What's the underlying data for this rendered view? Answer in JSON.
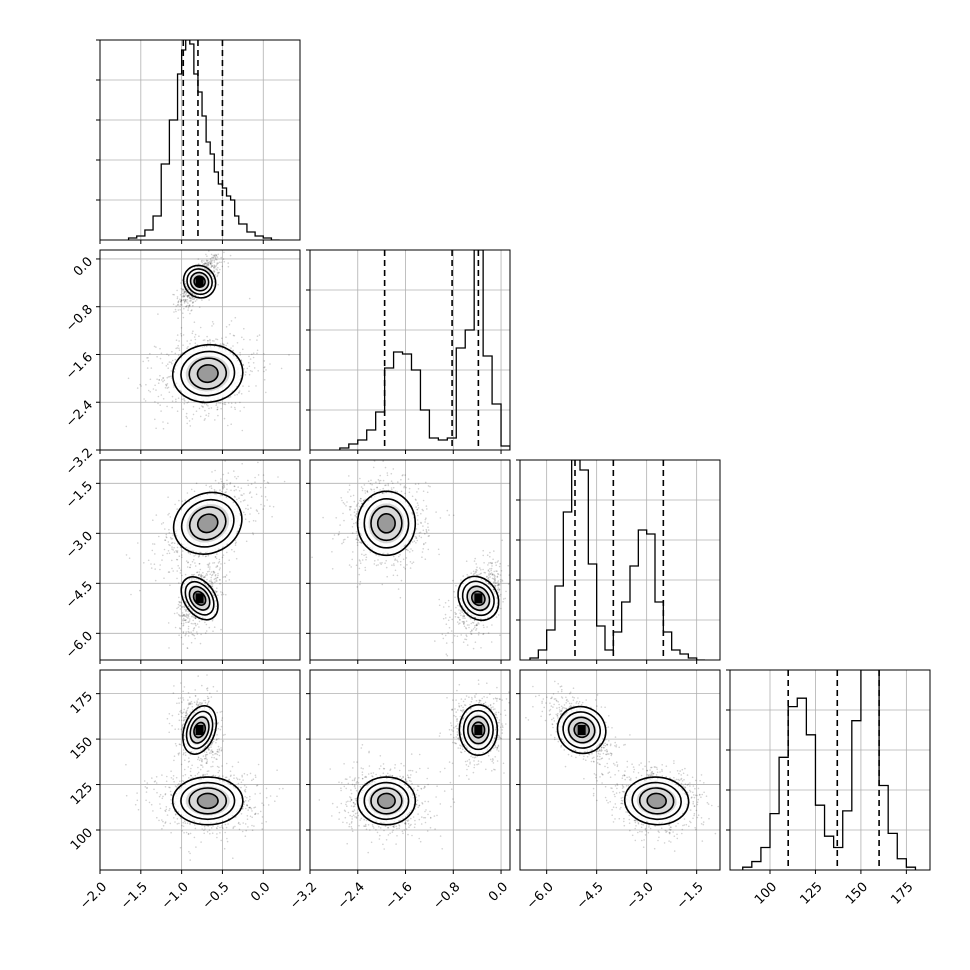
{
  "chart_data": {
    "type": "corner-plot",
    "grid": true,
    "variables": [
      {
        "ticks": [
          -2.0,
          -1.5,
          -1.0,
          -0.5,
          0.0
        ],
        "tick_labels": [
          "−2.0",
          "−1.5",
          "−1.0",
          "−0.5",
          "0.0"
        ],
        "xlim": [
          -2.0,
          0.45
        ],
        "quantiles": [
          -0.98,
          -0.8,
          -0.5
        ],
        "hist": {
          "bin_edges": [
            -1.65,
            -1.55,
            -1.45,
            -1.35,
            -1.25,
            -1.15,
            -1.05,
            -1.0,
            -0.95,
            -0.9,
            -0.85,
            -0.8,
            -0.75,
            -0.7,
            -0.65,
            -0.6,
            -0.55,
            -0.5,
            -0.45,
            -0.4,
            -0.35,
            -0.3,
            -0.2,
            -0.1,
            0.0,
            0.1,
            0.2
          ],
          "counts": [
            0.01,
            0.02,
            0.05,
            0.12,
            0.38,
            0.6,
            0.83,
            0.95,
            1.0,
            0.98,
            0.83,
            0.74,
            0.62,
            0.49,
            0.43,
            0.34,
            0.28,
            0.26,
            0.22,
            0.2,
            0.12,
            0.08,
            0.04,
            0.02,
            0.01,
            0.0
          ]
        }
      },
      {
        "ticks": [
          -3.2,
          -2.4,
          -1.6,
          -0.8,
          0.0
        ],
        "tick_labels": [
          "−3.2",
          "−2.4",
          "−1.6",
          "−0.8",
          "0.0"
        ],
        "xlim": [
          -3.2,
          0.15
        ],
        "quantiles": [
          -1.95,
          -0.82,
          -0.38
        ],
        "hist": {
          "bin_edges": [
            -2.7,
            -2.55,
            -2.4,
            -2.25,
            -2.1,
            -1.95,
            -1.8,
            -1.65,
            -1.5,
            -1.35,
            -1.2,
            -1.05,
            -0.9,
            -0.75,
            -0.6,
            -0.45,
            -0.3,
            -0.15,
            0.0,
            0.15
          ],
          "counts": [
            0.01,
            0.03,
            0.05,
            0.1,
            0.19,
            0.41,
            0.49,
            0.48,
            0.4,
            0.2,
            0.06,
            0.05,
            0.06,
            0.51,
            0.6,
            1.0,
            0.47,
            0.23,
            0.02
          ]
        }
      },
      {
        "ticks": [
          -6.0,
          -4.5,
          -3.0,
          -1.5
        ],
        "tick_labels": [
          "−6.0",
          "−4.5",
          "−3.0",
          "−1.5"
        ],
        "xlim": [
          -6.8,
          -0.8
        ],
        "quantiles": [
          -5.15,
          -4.0,
          -2.5
        ],
        "hist": {
          "bin_edges": [
            -6.5,
            -6.25,
            -6.0,
            -5.75,
            -5.5,
            -5.25,
            -5.0,
            -4.75,
            -4.5,
            -4.25,
            -4.0,
            -3.75,
            -3.5,
            -3.25,
            -3.0,
            -2.75,
            -2.5,
            -2.25,
            -2.0,
            -1.75,
            -1.5,
            -1.25
          ],
          "counts": [
            0.01,
            0.05,
            0.15,
            0.37,
            0.74,
            1.0,
            0.95,
            0.48,
            0.17,
            0.05,
            0.14,
            0.29,
            0.47,
            0.65,
            0.63,
            0.29,
            0.14,
            0.05,
            0.03,
            0.01,
            0.0
          ]
        }
      },
      {
        "ticks": [
          100,
          125,
          150,
          175
        ],
        "tick_labels": [
          "100",
          "125",
          "150",
          "175"
        ],
        "xlim": [
          78,
          188
        ],
        "quantiles": [
          110,
          137,
          160
        ],
        "hist": {
          "bin_edges": [
            85,
            90,
            95,
            100,
            105,
            110,
            115,
            120,
            125,
            130,
            135,
            140,
            145,
            150,
            155,
            160,
            165,
            170,
            175,
            180
          ],
          "counts": [
            0.01,
            0.03,
            0.08,
            0.2,
            0.4,
            0.58,
            0.61,
            0.48,
            0.23,
            0.12,
            0.08,
            0.21,
            0.53,
            0.71,
            0.71,
            0.3,
            0.13,
            0.04,
            0.01
          ]
        }
      }
    ],
    "y_axes": [
      null,
      {
        "ticks": [
          -3.2,
          -2.4,
          -1.6,
          -0.8,
          0.0
        ],
        "tick_labels": [
          "−3.2",
          "−2.4",
          "−1.6",
          "−0.8",
          "0.0"
        ],
        "ylim": [
          -3.2,
          0.15
        ]
      },
      {
        "ticks": [
          -6.0,
          -4.5,
          -3.0,
          -1.5
        ],
        "tick_labels": [
          "−6.0",
          "−4.5",
          "−3.0",
          "−1.5"
        ],
        "ylim": [
          -6.8,
          -0.8
        ]
      },
      {
        "ticks": [
          100,
          125,
          150,
          175
        ],
        "tick_labels": [
          "100",
          "125",
          "150",
          "175"
        ],
        "ylim": [
          78,
          188
        ]
      }
    ],
    "clusters": [
      {
        "means": [
          -0.78,
          -0.38,
          -4.95,
          155.0
        ],
        "sds": [
          0.11,
          0.19,
          0.45,
          8.5
        ],
        "pairs": {
          "0-1": 0.7,
          "0-2": 0.4,
          "0-3": -0.2,
          "1-2": 0.5,
          "1-3": 0.0,
          "2-3": -0.6
        },
        "weight": 0.45
      },
      {
        "means": [
          -0.68,
          -1.92,
          -2.7,
          116.0
        ],
        "sds": [
          0.27,
          0.3,
          0.6,
          8.0
        ],
        "pairs": {
          "0-1": 0.15,
          "0-2": 0.55,
          "0-3": 0.0,
          "1-2": 0.0,
          "1-3": 0.0,
          "2-3": -0.1
        },
        "weight": 0.55
      }
    ],
    "contour_levels_sigma": [
      0.5,
      1.0,
      1.5,
      2.0
    ]
  }
}
